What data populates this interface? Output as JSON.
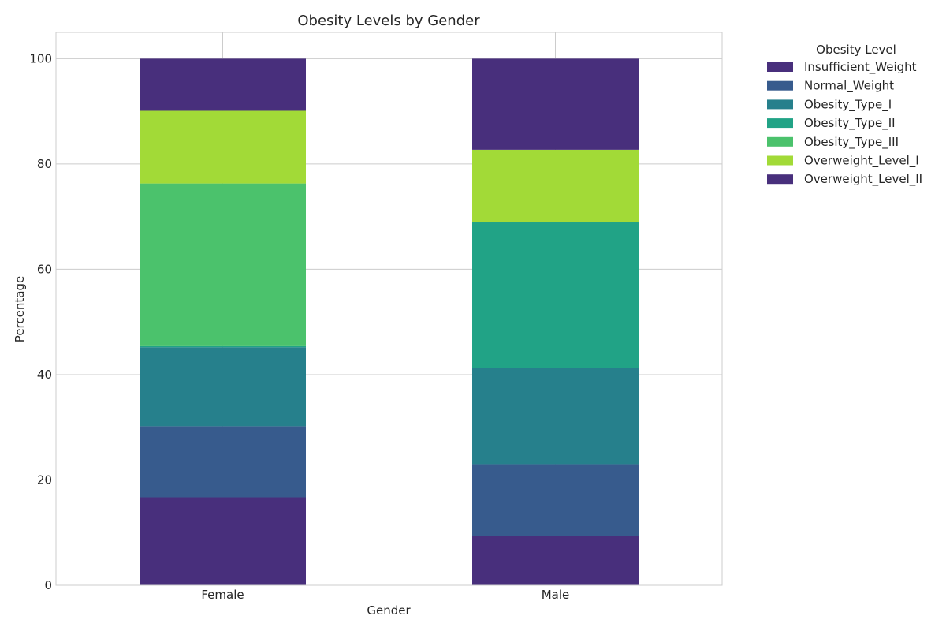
{
  "chart_data": {
    "type": "bar",
    "stacked": true,
    "title": "Obesity Levels by Gender",
    "xlabel": "Gender",
    "ylabel": "Percentage",
    "categories": [
      "Female",
      "Male"
    ],
    "ylim": [
      0,
      105
    ],
    "yticks": [
      0,
      20,
      40,
      60,
      80,
      100
    ],
    "grid": true,
    "legend": {
      "title": "Obesity Level",
      "placement": "outside-top-right"
    },
    "series": [
      {
        "name": "Insufficient_Weight",
        "color": "#482f7c",
        "values": [
          16.7,
          9.3
        ]
      },
      {
        "name": "Normal_Weight",
        "color": "#375b8d",
        "values": [
          13.5,
          13.7
        ]
      },
      {
        "name": "Obesity_Type_I",
        "color": "#26808c",
        "values": [
          15.0,
          18.2
        ]
      },
      {
        "name": "Obesity_Type_II",
        "color": "#21a386",
        "values": [
          0.2,
          27.7
        ]
      },
      {
        "name": "Obesity_Type_III",
        "color": "#4bc26c",
        "values": [
          30.9,
          0.1
        ]
      },
      {
        "name": "Overweight_Level_I",
        "color": "#a2da37",
        "values": [
          13.8,
          13.7
        ]
      },
      {
        "name": "Overweight_Level_II",
        "color": "#482f7c",
        "values": [
          9.9,
          17.3
        ]
      }
    ]
  }
}
